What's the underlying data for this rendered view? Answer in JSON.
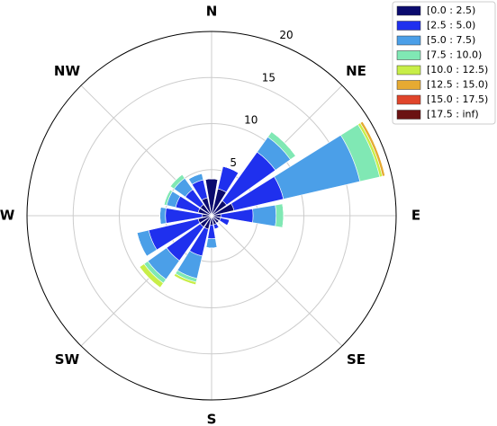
{
  "chart_data": {
    "type": "windrose",
    "x": [
      0,
      22.5,
      45,
      67.5,
      90,
      112.5,
      135,
      157.5,
      180,
      202.5,
      225,
      247.5,
      270,
      292.5,
      315,
      337.5
    ],
    "xticks": [
      {
        "value": 0,
        "label": "N"
      },
      {
        "value": 45,
        "label": "NE"
      },
      {
        "value": 90,
        "label": "E"
      },
      {
        "value": 135,
        "label": "SE"
      },
      {
        "value": 180,
        "label": "S"
      },
      {
        "value": 225,
        "label": "SW"
      },
      {
        "value": 270,
        "label": "W"
      },
      {
        "value": 315,
        "label": "NW"
      }
    ],
    "ylim": [
      0,
      20
    ],
    "yticks": [
      5,
      10,
      15,
      20
    ],
    "grid": true,
    "legend": "upper right",
    "series": [
      {
        "name": "[0.0 : 2.5)",
        "color": "#0b0b6e",
        "values": [
          4,
          3,
          2,
          2.5,
          1,
          1,
          1,
          1,
          1,
          1.5,
          1.5,
          1.5,
          1,
          1.5,
          1.5,
          2
        ]
      },
      {
        "name": "[2.5 : 5.0)",
        "color": "#1f30ee",
        "values": [
          0,
          2.5,
          6.5,
          5.5,
          3.5,
          1,
          0,
          0.5,
          1.5,
          3,
          4.5,
          5.5,
          4,
          2.5,
          2,
          2
        ]
      },
      {
        "name": "[5.0 : 7.5)",
        "color": "#4b9fe8",
        "values": [
          0,
          0,
          2,
          8.5,
          2.5,
          0,
          0,
          0,
          1,
          2.5,
          2.5,
          1.3,
          0.6,
          1,
          1.5,
          0.7
        ]
      },
      {
        "name": "[7.5 : 10.0)",
        "color": "#80e8b4",
        "values": [
          0,
          0,
          0.7,
          2.2,
          0.8,
          0,
          0,
          0,
          0,
          0.4,
          0.5,
          0,
          0,
          0.3,
          0.5,
          0
        ]
      },
      {
        "name": "[10.0 : 12.5)",
        "color": "#c8ee48",
        "values": [
          0,
          0,
          0,
          0.3,
          0,
          0,
          0,
          0,
          0,
          0.3,
          0.6,
          0,
          0,
          0,
          0,
          0
        ]
      },
      {
        "name": "[12.5 : 15.0)",
        "color": "#e6aa32",
        "values": [
          0,
          0,
          0,
          0.3,
          0,
          0,
          0,
          0,
          0,
          0,
          0,
          0,
          0,
          0,
          0,
          0
        ]
      },
      {
        "name": "[15.0 : 17.5)",
        "color": "#e0452b",
        "values": [
          0,
          0,
          0,
          0,
          0,
          0,
          0,
          0,
          0,
          0,
          0,
          0,
          0,
          0,
          0,
          0
        ]
      },
      {
        "name": "[17.5 : inf)",
        "color": "#6b1212",
        "values": [
          0,
          0,
          0,
          0,
          0,
          0,
          0,
          0,
          0,
          0,
          0,
          0,
          0,
          0,
          0,
          0
        ]
      }
    ]
  }
}
